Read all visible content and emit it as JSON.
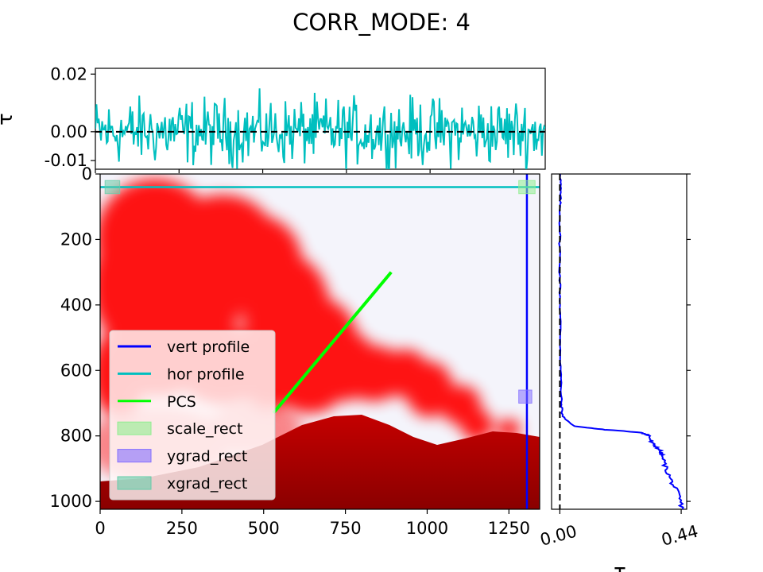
{
  "figure": {
    "title": "CORR_MODE: 4"
  },
  "chart_data": [
    {
      "type": "line",
      "panel": "top-horizontal-profile",
      "ylabel": "τ",
      "xlim": [
        0,
        1344
      ],
      "ylim": [
        -0.013,
        0.022
      ],
      "y_ticks": [
        "0.02",
        "0.00",
        "-0.01"
      ],
      "y_tick_values": [
        0.02,
        0.0,
        -0.01
      ],
      "series": [
        {
          "name": "hor profile",
          "color": "#00bfbf",
          "noise_amplitude": 0.008,
          "n_points": 400
        },
        {
          "kind": "zero-reference",
          "color": "#000000",
          "style": "dashed",
          "y": 0.0
        }
      ]
    },
    {
      "type": "heatmap",
      "panel": "main-image",
      "xlim": [
        0,
        1344
      ],
      "ylim": [
        1024,
        0
      ],
      "x_ticks": [
        "0",
        "250",
        "500",
        "750",
        "1000",
        "1250"
      ],
      "x_tick_values": [
        0,
        250,
        500,
        750,
        1000,
        1250
      ],
      "y_ticks": [
        "0",
        "200",
        "400",
        "600",
        "800",
        "1000"
      ],
      "y_tick_values": [
        0,
        200,
        400,
        600,
        800,
        1000
      ],
      "colors": {
        "plume": "#ff0000",
        "volcano_top": "#c40000",
        "volcano_bottom": "#8a0000",
        "background": "#f4f4fb"
      },
      "lines": [
        {
          "name": "vert profile",
          "color": "#0000ff",
          "x": [
            1305,
            1305
          ],
          "y": [
            0,
            1024
          ]
        },
        {
          "name": "hor profile",
          "color": "#00bfbf",
          "x": [
            0,
            1344
          ],
          "y": [
            40,
            40
          ]
        },
        {
          "name": "PCS",
          "color": "#00ff00",
          "x": [
            530,
            890
          ],
          "y": [
            730,
            300
          ]
        }
      ],
      "rects": [
        {
          "name": "scale_rect",
          "color": "#90ee90",
          "x": [
            1280,
            1330
          ],
          "y": [
            20,
            60
          ]
        },
        {
          "name": "ygrad_rect",
          "color": "#8470ff",
          "x": [
            1280,
            1320
          ],
          "y": [
            660,
            700
          ]
        },
        {
          "name": "xgrad_rect",
          "color": "#66cdaa",
          "x": [
            15,
            60
          ],
          "y": [
            20,
            60
          ]
        }
      ],
      "legend": {
        "position": "lower-left",
        "entries": [
          {
            "label": "vert profile",
            "kind": "line",
            "color": "#0000ff"
          },
          {
            "label": "hor profile",
            "kind": "line",
            "color": "#00bfbf"
          },
          {
            "label": "PCS",
            "kind": "line",
            "color": "#00ff00"
          },
          {
            "label": "scale_rect",
            "kind": "patch",
            "color": "#90ee90"
          },
          {
            "label": "ygrad_rect",
            "kind": "patch",
            "color": "#8470ff"
          },
          {
            "label": "xgrad_rect",
            "kind": "patch",
            "color": "#66cdaa"
          }
        ]
      }
    },
    {
      "type": "line",
      "panel": "right-vertical-profile",
      "xlabel": "τ",
      "xlim": [
        -0.03,
        0.46
      ],
      "ylim": [
        1024,
        0
      ],
      "x_ticks": [
        "0.00",
        "0.44"
      ],
      "x_tick_values": [
        0.0,
        0.44
      ],
      "series": [
        {
          "name": "vert profile",
          "color": "#0000ff",
          "y": [
            0,
            50,
            100,
            200,
            300,
            400,
            500,
            600,
            700,
            740,
            770,
            780,
            790,
            800,
            820,
            840,
            860,
            900,
            940,
            980,
            1024
          ],
          "x": [
            0.003,
            0.002,
            0.001,
            0.0,
            0.0,
            0.001,
            0.002,
            0.003,
            0.005,
            0.01,
            0.05,
            0.15,
            0.3,
            0.325,
            0.33,
            0.36,
            0.37,
            0.385,
            0.405,
            0.43,
            0.445
          ]
        },
        {
          "kind": "zero-reference",
          "color": "#000000",
          "style": "dashed",
          "x": 0.0
        }
      ]
    }
  ]
}
